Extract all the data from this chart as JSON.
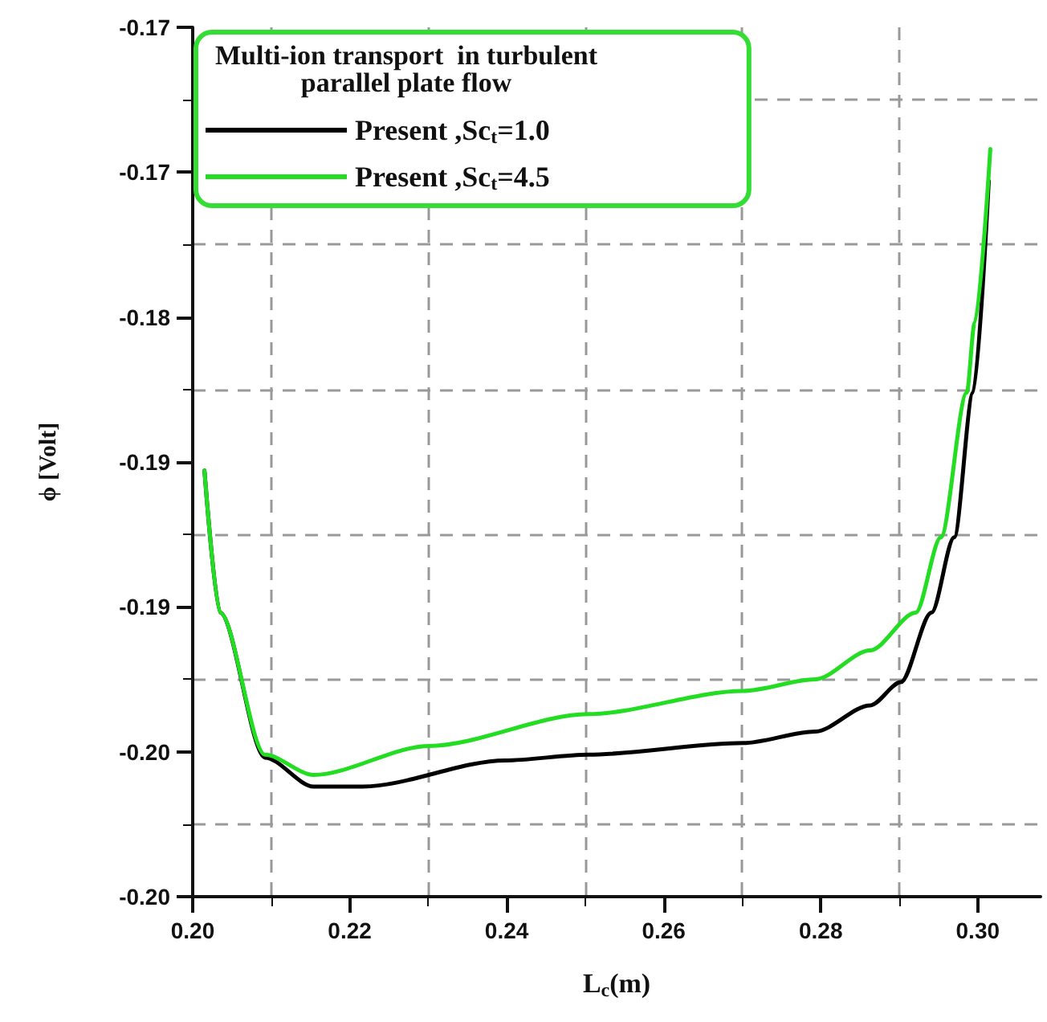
{
  "chart_data": {
    "type": "line",
    "xlabel": "L$_{c}$(m)",
    "ylabel": "ϕ [Volt]",
    "legend_title": "Multi-ion transport  in turbulent\nparallel plate flow",
    "legend": "top left",
    "grid": true,
    "marker": "none",
    "line_style": "solid",
    "xlim": [
      0.2,
      0.308
    ],
    "xticks": [
      {
        "value": 0.2,
        "label": "0.20"
      },
      {
        "value": 0.22,
        "label": "0.22"
      },
      {
        "value": 0.24,
        "label": "0.24"
      },
      {
        "value": 0.26,
        "label": "0.26"
      },
      {
        "value": 0.28,
        "label": "0.28"
      },
      {
        "value": 0.3,
        "label": "0.30"
      }
    ],
    "ylim": [
      -0.2,
      -0.17
    ],
    "yticks": [
      {
        "value": -0.2,
        "label": "-0.20"
      },
      {
        "value": -0.195,
        "label": "-0.20"
      },
      {
        "value": -0.19,
        "label": "-0.19"
      },
      {
        "value": -0.185,
        "label": "-0.19"
      },
      {
        "value": -0.18,
        "label": "-0.18"
      },
      {
        "value": -0.175,
        "label": "-0.17"
      },
      {
        "value": -0.17,
        "label": "-0.17"
      }
    ],
    "series": [
      {
        "name": "Present ,Sc$_{t}$=1.0",
        "color": "#000000",
        "x": [
          0.2015,
          0.2035,
          0.2092,
          0.2154,
          0.2217,
          0.2398,
          0.2504,
          0.2701,
          0.2793,
          0.2863,
          0.2902,
          0.2941,
          0.297,
          0.2994,
          0.3014
        ],
        "values": [
          -0.1853,
          -0.1902,
          -0.1952,
          -0.1962,
          -0.1962,
          -0.1953,
          -0.1951,
          -0.1947,
          -0.1943,
          -0.1934,
          -0.1926,
          -0.1902,
          -0.1876,
          -0.1826,
          -0.1753
        ]
      },
      {
        "name": "Present ,Sc$_{t}$=4.5",
        "color": "#22dd22",
        "x": [
          0.2015,
          0.2035,
          0.2092,
          0.2154,
          0.2301,
          0.2504,
          0.2701,
          0.2793,
          0.2863,
          0.2921,
          0.2953,
          0.2986,
          0.2996,
          0.3016
        ],
        "values": [
          -0.1853,
          -0.1902,
          -0.1951,
          -0.1958,
          -0.1948,
          -0.1937,
          -0.1929,
          -0.1925,
          -0.1915,
          -0.1902,
          -0.1876,
          -0.1826,
          -0.1802,
          -0.1742
        ]
      }
    ]
  }
}
